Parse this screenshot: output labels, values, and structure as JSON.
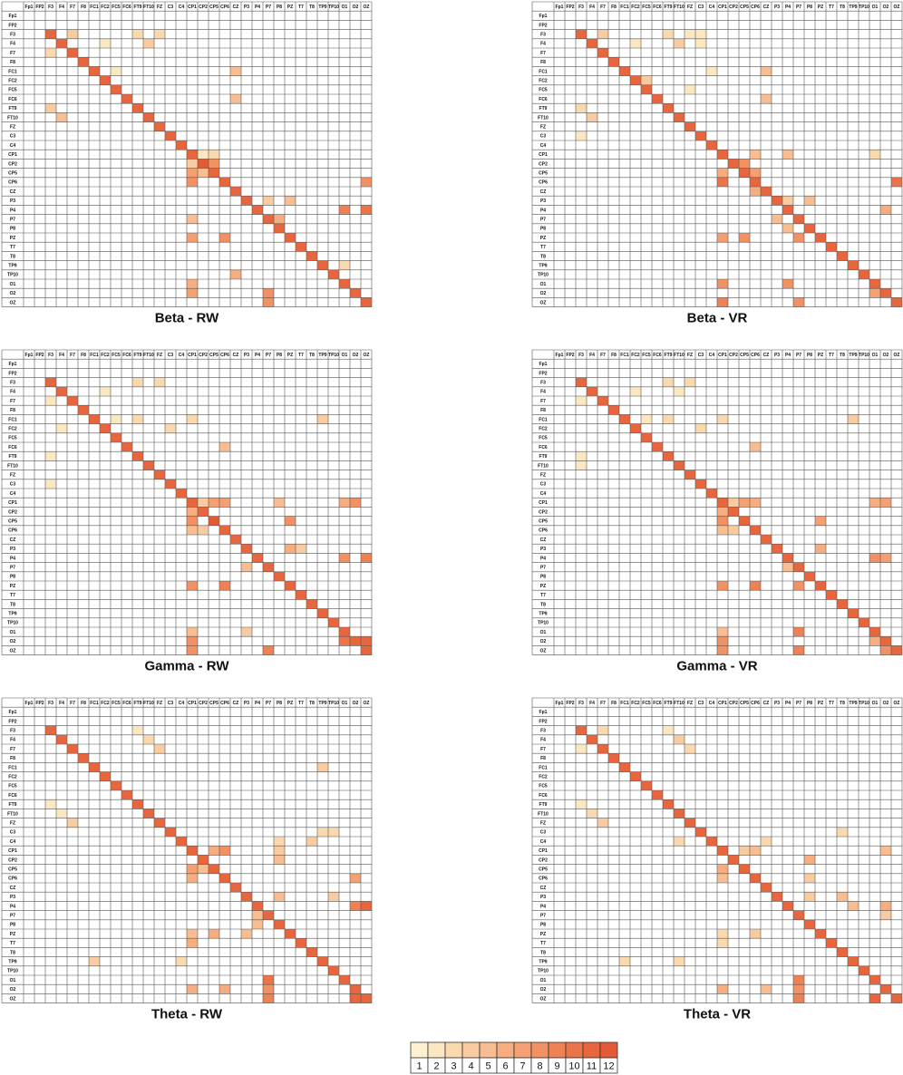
{
  "labels": [
    "Fp1",
    "FP2",
    "F3",
    "F4",
    "F7",
    "F8",
    "FC1",
    "FC2",
    "FC5",
    "FC6",
    "FT9",
    "FT10",
    "FZ",
    "C3",
    "C4",
    "CP1",
    "CP2",
    "CP5",
    "CP6",
    "CZ",
    "P3",
    "P4",
    "P7",
    "P8",
    "PZ",
    "T7",
    "T8",
    "TP9",
    "TP10",
    "O1",
    "O2",
    "OZ"
  ],
  "legend": {
    "values": [
      1,
      2,
      3,
      4,
      5,
      6,
      7,
      8,
      9,
      10,
      11,
      12
    ],
    "colors": [
      "#fdf1cf",
      "#fce8c0",
      "#fbd9ae",
      "#f9cba0",
      "#f8bd90",
      "#f6ae80",
      "#f4a072",
      "#f29163",
      "#ef8255",
      "#ec7449",
      "#e8663e",
      "#e45a35"
    ]
  },
  "chart_data": [
    {
      "type": "heatmap",
      "title": "Beta - RW",
      "diagonal": [
        null,
        null,
        11,
        11,
        11,
        11,
        11,
        11,
        11,
        11,
        11,
        11,
        11,
        11,
        11,
        11,
        12,
        11,
        11,
        11,
        11,
        11,
        11,
        11,
        11,
        11,
        11,
        11,
        11,
        11,
        11,
        11
      ],
      "cells": [
        [
          2,
          4,
          4
        ],
        [
          2,
          10,
          3
        ],
        [
          2,
          12,
          3
        ],
        [
          3,
          7,
          2
        ],
        [
          3,
          11,
          4
        ],
        [
          4,
          2,
          3
        ],
        [
          6,
          19,
          5
        ],
        [
          6,
          8,
          2
        ],
        [
          9,
          19,
          5
        ],
        [
          10,
          2,
          4
        ],
        [
          11,
          3,
          5
        ],
        [
          15,
          16,
          2
        ],
        [
          15,
          17,
          3
        ],
        [
          16,
          15,
          4
        ],
        [
          16,
          17,
          8
        ],
        [
          17,
          15,
          7
        ],
        [
          17,
          16,
          5
        ],
        [
          18,
          15,
          8
        ],
        [
          18,
          31,
          8
        ],
        [
          20,
          22,
          4
        ],
        [
          20,
          24,
          5
        ],
        [
          21,
          29,
          9
        ],
        [
          21,
          31,
          10
        ],
        [
          22,
          15,
          5
        ],
        [
          22,
          23,
          6
        ],
        [
          24,
          15,
          7
        ],
        [
          24,
          18,
          8
        ],
        [
          29,
          15,
          6
        ],
        [
          30,
          15,
          7
        ],
        [
          30,
          22,
          8
        ],
        [
          31,
          22,
          8
        ],
        [
          28,
          19,
          6
        ],
        [
          27,
          29,
          3
        ]
      ]
    },
    {
      "type": "heatmap",
      "title": "Beta - VR",
      "diagonal": [
        null,
        null,
        11,
        11,
        11,
        11,
        11,
        11,
        11,
        11,
        11,
        11,
        11,
        11,
        11,
        11,
        11,
        11,
        11,
        11,
        11,
        11,
        11,
        11,
        11,
        11,
        11,
        11,
        11,
        11,
        11,
        11
      ],
      "cells": [
        [
          2,
          4,
          4
        ],
        [
          2,
          10,
          3
        ],
        [
          2,
          12,
          2
        ],
        [
          2,
          13,
          2
        ],
        [
          3,
          7,
          2
        ],
        [
          3,
          11,
          4
        ],
        [
          3,
          13,
          2
        ],
        [
          6,
          19,
          5
        ],
        [
          6,
          14,
          2
        ],
        [
          7,
          8,
          4
        ],
        [
          8,
          12,
          2
        ],
        [
          9,
          19,
          5
        ],
        [
          10,
          2,
          3
        ],
        [
          11,
          3,
          4
        ],
        [
          13,
          2,
          2
        ],
        [
          15,
          18,
          5
        ],
        [
          15,
          21,
          5
        ],
        [
          15,
          29,
          3
        ],
        [
          16,
          17,
          8
        ],
        [
          17,
          15,
          6
        ],
        [
          17,
          18,
          7
        ],
        [
          18,
          15,
          10
        ],
        [
          18,
          31,
          10
        ],
        [
          19,
          18,
          6
        ],
        [
          20,
          21,
          4
        ],
        [
          20,
          23,
          5
        ],
        [
          21,
          30,
          6
        ],
        [
          22,
          20,
          5
        ],
        [
          23,
          21,
          5
        ],
        [
          24,
          15,
          7
        ],
        [
          24,
          17,
          8
        ],
        [
          24,
          22,
          8
        ],
        [
          29,
          15,
          8
        ],
        [
          29,
          21,
          8
        ],
        [
          30,
          29,
          7
        ],
        [
          31,
          15,
          9
        ],
        [
          31,
          22,
          8
        ]
      ]
    },
    {
      "type": "heatmap",
      "title": "Gamma - RW",
      "diagonal": [
        null,
        null,
        11,
        11,
        11,
        11,
        11,
        11,
        11,
        11,
        11,
        11,
        11,
        11,
        11,
        11,
        11,
        12,
        11,
        11,
        11,
        11,
        11,
        11,
        11,
        11,
        11,
        11,
        11,
        11,
        11,
        11
      ],
      "cells": [
        [
          2,
          10,
          3
        ],
        [
          2,
          12,
          3
        ],
        [
          3,
          7,
          2
        ],
        [
          4,
          2,
          2
        ],
        [
          6,
          8,
          2
        ],
        [
          6,
          10,
          3
        ],
        [
          6,
          15,
          3
        ],
        [
          6,
          27,
          4
        ],
        [
          7,
          3,
          2
        ],
        [
          7,
          13,
          3
        ],
        [
          9,
          18,
          5
        ],
        [
          10,
          2,
          2
        ],
        [
          13,
          2,
          2
        ],
        [
          15,
          16,
          4
        ],
        [
          15,
          17,
          7
        ],
        [
          15,
          18,
          7
        ],
        [
          15,
          23,
          5
        ],
        [
          15,
          29,
          6
        ],
        [
          15,
          30,
          8
        ],
        [
          16,
          15,
          6
        ],
        [
          17,
          15,
          8
        ],
        [
          17,
          24,
          8
        ],
        [
          18,
          15,
          5
        ],
        [
          18,
          16,
          4
        ],
        [
          20,
          24,
          6
        ],
        [
          20,
          25,
          4
        ],
        [
          21,
          29,
          8
        ],
        [
          21,
          31,
          9
        ],
        [
          22,
          20,
          5
        ],
        [
          24,
          15,
          8
        ],
        [
          24,
          18,
          9
        ],
        [
          29,
          15,
          5
        ],
        [
          29,
          20,
          4
        ],
        [
          30,
          15,
          8
        ],
        [
          30,
          29,
          10
        ],
        [
          31,
          15,
          8
        ],
        [
          31,
          22,
          9
        ],
        [
          30,
          31,
          11
        ]
      ]
    },
    {
      "type": "heatmap",
      "title": "Gamma - VR",
      "diagonal": [
        null,
        null,
        11,
        11,
        11,
        11,
        11,
        11,
        11,
        11,
        11,
        11,
        11,
        11,
        11,
        11,
        11,
        11,
        11,
        11,
        11,
        11,
        11,
        11,
        11,
        11,
        11,
        11,
        11,
        11,
        11,
        11
      ],
      "cells": [
        [
          2,
          10,
          3
        ],
        [
          2,
          12,
          3
        ],
        [
          3,
          7,
          2
        ],
        [
          3,
          11,
          2
        ],
        [
          4,
          2,
          2
        ],
        [
          6,
          8,
          2
        ],
        [
          6,
          10,
          3
        ],
        [
          6,
          15,
          3
        ],
        [
          6,
          27,
          4
        ],
        [
          7,
          13,
          3
        ],
        [
          9,
          18,
          5
        ],
        [
          10,
          2,
          2
        ],
        [
          11,
          2,
          2
        ],
        [
          15,
          16,
          4
        ],
        [
          15,
          17,
          7
        ],
        [
          15,
          18,
          6
        ],
        [
          15,
          29,
          6
        ],
        [
          15,
          30,
          7
        ],
        [
          16,
          15,
          6
        ],
        [
          17,
          15,
          8
        ],
        [
          17,
          24,
          7
        ],
        [
          18,
          15,
          5
        ],
        [
          18,
          16,
          4
        ],
        [
          20,
          24,
          6
        ],
        [
          21,
          29,
          8
        ],
        [
          21,
          30,
          7
        ],
        [
          22,
          21,
          5
        ],
        [
          24,
          15,
          8
        ],
        [
          24,
          18,
          9
        ],
        [
          24,
          22,
          8
        ],
        [
          29,
          15,
          5
        ],
        [
          29,
          22,
          9
        ],
        [
          30,
          15,
          8
        ],
        [
          30,
          29,
          6
        ],
        [
          31,
          15,
          8
        ],
        [
          31,
          22,
          9
        ],
        [
          31,
          30,
          8
        ]
      ]
    },
    {
      "type": "heatmap",
      "title": "Theta - RW",
      "diagonal": [
        null,
        null,
        11,
        11,
        11,
        11,
        11,
        11,
        11,
        11,
        11,
        11,
        11,
        11,
        11,
        11,
        11,
        11,
        11,
        11,
        11,
        11,
        11,
        11,
        11,
        11,
        11,
        11,
        11,
        11,
        11,
        11
      ],
      "cells": [
        [
          2,
          10,
          2
        ],
        [
          3,
          11,
          3
        ],
        [
          4,
          12,
          4
        ],
        [
          6,
          27,
          4
        ],
        [
          10,
          2,
          2
        ],
        [
          11,
          3,
          2
        ],
        [
          12,
          4,
          4
        ],
        [
          13,
          27,
          3
        ],
        [
          13,
          28,
          3
        ],
        [
          14,
          26,
          4
        ],
        [
          14,
          23,
          3
        ],
        [
          15,
          17,
          6
        ],
        [
          15,
          18,
          8
        ],
        [
          15,
          23,
          4
        ],
        [
          16,
          23,
          5
        ],
        [
          17,
          15,
          7
        ],
        [
          17,
          16,
          5
        ],
        [
          18,
          15,
          6
        ],
        [
          18,
          30,
          7
        ],
        [
          20,
          23,
          5
        ],
        [
          20,
          28,
          4
        ],
        [
          21,
          30,
          9
        ],
        [
          21,
          31,
          11
        ],
        [
          22,
          21,
          5
        ],
        [
          23,
          21,
          5
        ],
        [
          24,
          15,
          5
        ],
        [
          24,
          17,
          6
        ],
        [
          24,
          20,
          5
        ],
        [
          25,
          15,
          6
        ],
        [
          27,
          6,
          4
        ],
        [
          27,
          14,
          3
        ],
        [
          29,
          22,
          10
        ],
        [
          30,
          15,
          6
        ],
        [
          30,
          18,
          6
        ],
        [
          30,
          22,
          8
        ],
        [
          31,
          22,
          9
        ],
        [
          31,
          30,
          11
        ]
      ]
    },
    {
      "type": "heatmap",
      "title": "Theta - VR",
      "diagonal": [
        null,
        null,
        11,
        11,
        11,
        11,
        11,
        11,
        11,
        11,
        11,
        11,
        11,
        11,
        11,
        11,
        11,
        11,
        11,
        11,
        11,
        11,
        11,
        11,
        11,
        11,
        11,
        11,
        11,
        11,
        11,
        11
      ],
      "cells": [
        [
          2,
          4,
          3
        ],
        [
          2,
          10,
          2
        ],
        [
          3,
          11,
          4
        ],
        [
          4,
          2,
          2
        ],
        [
          4,
          12,
          3
        ],
        [
          10,
          2,
          2
        ],
        [
          11,
          3,
          3
        ],
        [
          12,
          4,
          4
        ],
        [
          13,
          26,
          3
        ],
        [
          14,
          11,
          3
        ],
        [
          14,
          19,
          3
        ],
        [
          15,
          17,
          4
        ],
        [
          15,
          18,
          5
        ],
        [
          15,
          30,
          5
        ],
        [
          16,
          23,
          6
        ],
        [
          17,
          15,
          6
        ],
        [
          18,
          15,
          5
        ],
        [
          18,
          23,
          4
        ],
        [
          20,
          23,
          4
        ],
        [
          20,
          26,
          5
        ],
        [
          21,
          27,
          5
        ],
        [
          21,
          30,
          6
        ],
        [
          22,
          30,
          4
        ],
        [
          24,
          15,
          3
        ],
        [
          24,
          18,
          4
        ],
        [
          25,
          15,
          3
        ],
        [
          27,
          6,
          3
        ],
        [
          27,
          11,
          3
        ],
        [
          29,
          22,
          9
        ],
        [
          30,
          15,
          6
        ],
        [
          30,
          19,
          5
        ],
        [
          30,
          22,
          8
        ],
        [
          31,
          22,
          9
        ],
        [
          31,
          29,
          11
        ]
      ]
    }
  ]
}
